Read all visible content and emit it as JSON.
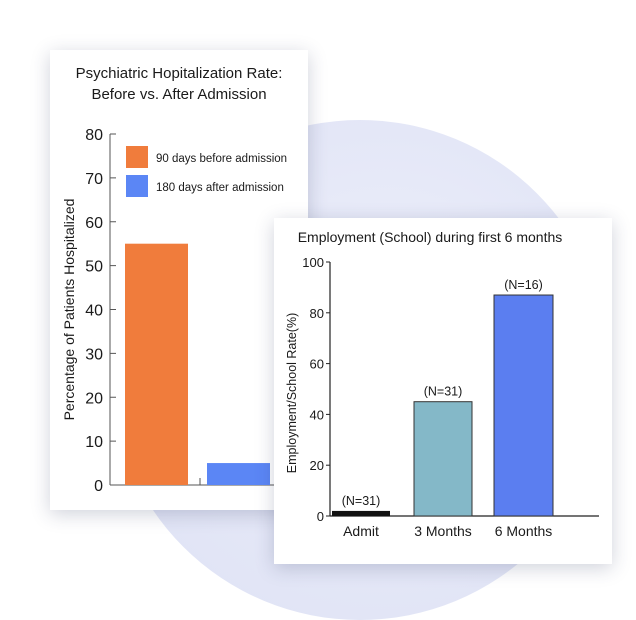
{
  "chart_data": [
    {
      "type": "bar",
      "title": [
        "Psychiatric Hopitalization Rate:",
        "Before vs. After Admission"
      ],
      "ylabel": "Percentage of Patients Hospitalized",
      "xlabel": "",
      "ylim": [
        0,
        80
      ],
      "yticks": [
        0,
        10,
        20,
        30,
        40,
        50,
        60,
        70,
        80
      ],
      "grid": false,
      "legend_placement": "top-right",
      "series": [
        {
          "name": "90 days before admission",
          "color": "#f07c3c",
          "values": [
            55
          ]
        },
        {
          "name": "180 days after admission",
          "color": "#5b86f5",
          "values": [
            5
          ]
        }
      ]
    },
    {
      "type": "bar",
      "title": "Employment (School) during first 6 months",
      "ylabel": "Employment/School Rate(%)",
      "xlabel": "",
      "ylim": [
        0,
        100
      ],
      "yticks": [
        0,
        20,
        40,
        60,
        80,
        100
      ],
      "grid": false,
      "categories": [
        "Admit",
        "3 Months",
        "6 Months"
      ],
      "values": [
        2,
        45,
        87
      ],
      "data_labels": [
        "(N=31)",
        "(N=31)",
        "(N=16)"
      ],
      "colors": [
        "#111111",
        "#84b8c8",
        "#5b7ef0"
      ]
    }
  ]
}
